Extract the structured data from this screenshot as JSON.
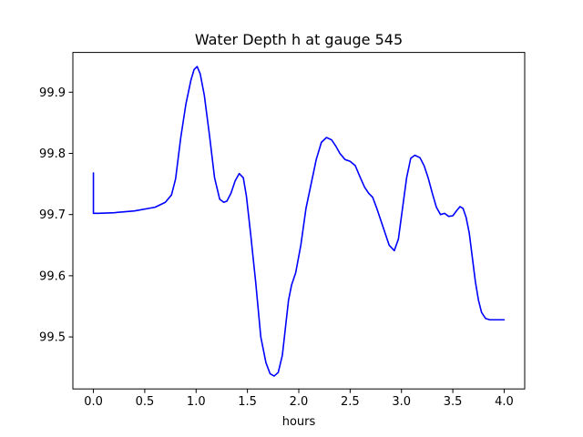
{
  "chart_data": {
    "type": "line",
    "title": "Water Depth h at gauge 545",
    "xlabel": "hours",
    "ylabel": "",
    "xlim": [
      -0.2,
      4.2
    ],
    "ylim": [
      99.415,
      99.965
    ],
    "xticks": [
      0.0,
      0.5,
      1.0,
      1.5,
      2.0,
      2.5,
      3.0,
      3.5,
      4.0
    ],
    "xtick_labels": [
      "0.0",
      "0.5",
      "1.0",
      "1.5",
      "2.0",
      "2.5",
      "3.0",
      "3.5",
      "4.0"
    ],
    "yticks": [
      99.5,
      99.6,
      99.7,
      99.8,
      99.9
    ],
    "ytick_labels": [
      "99.5",
      "99.6",
      "99.7",
      "99.8",
      "99.9"
    ],
    "grid": false,
    "line_color": "#0000ff",
    "series": [
      {
        "x": [
          0.0,
          0.0,
          0.05,
          0.2,
          0.4,
          0.6,
          0.7,
          0.76,
          0.8,
          0.85,
          0.9,
          0.95,
          0.98,
          1.01,
          1.04,
          1.08,
          1.13,
          1.18,
          1.23,
          1.27,
          1.3,
          1.34,
          1.38,
          1.42,
          1.46,
          1.49,
          1.53,
          1.58,
          1.63,
          1.68,
          1.72,
          1.76,
          1.8,
          1.84,
          1.87,
          1.9,
          1.93,
          1.97,
          2.02,
          2.07,
          2.12,
          2.17,
          2.22,
          2.27,
          2.32,
          2.36,
          2.4,
          2.45,
          2.5,
          2.55,
          2.6,
          2.64,
          2.68,
          2.72,
          2.76,
          2.8,
          2.84,
          2.88,
          2.93,
          2.97,
          3.01,
          3.05,
          3.09,
          3.13,
          3.18,
          3.22,
          3.26,
          3.3,
          3.34,
          3.38,
          3.42,
          3.46,
          3.5,
          3.54,
          3.57,
          3.6,
          3.63,
          3.66,
          3.69,
          3.72,
          3.75,
          3.78,
          3.82,
          3.86,
          3.9,
          3.94,
          3.98,
          4.0
        ],
        "y": [
          99.768,
          99.702,
          99.702,
          99.703,
          99.706,
          99.712,
          99.72,
          99.732,
          99.758,
          99.825,
          99.88,
          99.92,
          99.937,
          99.942,
          99.93,
          99.895,
          99.83,
          99.76,
          99.725,
          99.72,
          99.722,
          99.735,
          99.755,
          99.767,
          99.76,
          99.73,
          99.67,
          99.59,
          99.5,
          99.458,
          99.44,
          99.436,
          99.442,
          99.47,
          99.515,
          99.56,
          99.585,
          99.605,
          99.65,
          99.71,
          99.75,
          99.79,
          99.818,
          99.826,
          99.822,
          99.812,
          99.8,
          99.79,
          99.787,
          99.78,
          99.76,
          99.745,
          99.735,
          99.728,
          99.71,
          99.69,
          99.67,
          99.65,
          99.641,
          99.66,
          99.71,
          99.76,
          99.792,
          99.797,
          99.793,
          99.78,
          99.76,
          99.735,
          99.712,
          99.7,
          99.702,
          99.697,
          99.698,
          99.707,
          99.713,
          99.71,
          99.695,
          99.67,
          99.63,
          99.59,
          99.56,
          99.54,
          99.53,
          99.528,
          99.528,
          99.528,
          99.528,
          99.528
        ]
      }
    ]
  }
}
